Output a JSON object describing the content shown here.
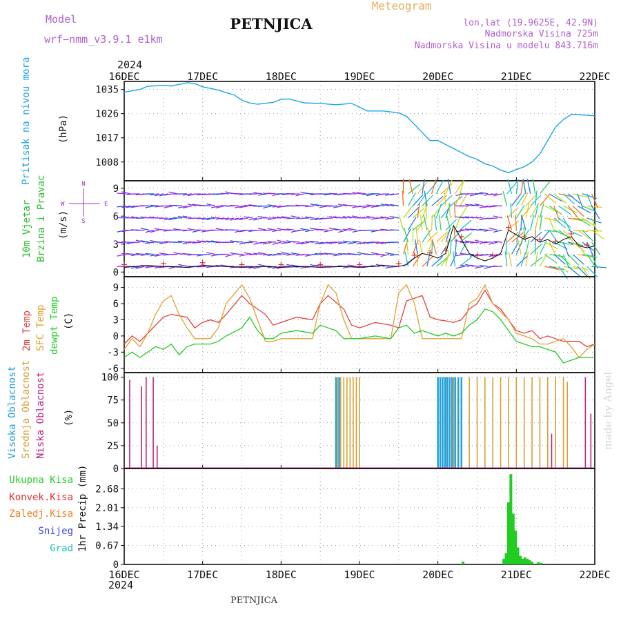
{
  "header": {
    "title": "PETNJICA",
    "subtitle": "Meteogram",
    "model_label": "Model",
    "model_name": "wrf−nmm_v3.9.1  e1km",
    "coords": "lon,lat (19.9625E, 42.9N)",
    "elevation": "Nadmorska Visina 725m",
    "model_elevation": "Nadmorska Visina u modelu 843.716m",
    "year": "2024",
    "footer_title": "PETNJICA",
    "credit": "made by Angel"
  },
  "colors": {
    "pressure": "#1ba5e6",
    "wind_label": "#22bb22",
    "wind_axis_label": "#a030d0",
    "temp_2m": "#e04040",
    "temp_sfc": "#e0a030",
    "dewpt": "#22cc22",
    "cloud_high": "#20a0e0",
    "cloud_mid": "#d8a030",
    "cloud_low": "#c02080",
    "rain_total": "#22cc22",
    "rain_conv": "#e03030",
    "rain_frozen": "#f08020",
    "snow": "#4040e0",
    "hail": "#20c0c0",
    "title_orange": "#e6b060",
    "purple_text": "#b060d0"
  },
  "chart_data": [
    {
      "type": "line",
      "panel": "pressure",
      "ylabel_main": "Pritisak na nivou mora",
      "ylabel_unit": "(hPa)",
      "x_start": "16DEC",
      "x_ticks": [
        "16DEC",
        "17DEC",
        "18DEC",
        "19DEC",
        "20DEC",
        "21DEC",
        "22DEC"
      ],
      "ylim": [
        1001,
        1038
      ],
      "yticks": [
        1008,
        1017,
        1026,
        1035
      ],
      "grid": true,
      "series": [
        {
          "x": [
            0,
            0.2,
            0.3,
            0.5,
            0.6,
            0.8,
            0.9,
            1.0,
            1.2,
            1.3,
            1.4,
            1.5,
            1.6,
            1.7,
            1.9,
            2.0,
            2.1,
            2.3,
            2.5,
            2.7,
            2.9,
            3.1,
            3.3,
            3.5,
            3.6,
            3.8,
            3.9,
            4.0,
            4.1,
            4.3,
            4.4,
            4.5,
            4.6,
            4.7,
            4.8,
            4.9,
            5.0,
            5.1,
            5.2,
            5.3,
            5.4,
            5.5,
            5.6,
            5.7,
            5.8,
            6.0
          ],
          "y": [
            1034,
            1035,
            1036.2,
            1036.5,
            1036.3,
            1037.5,
            1037.2,
            1036,
            1034.8,
            1033.8,
            1033,
            1031,
            1030,
            1029.5,
            1030.2,
            1031.3,
            1031.5,
            1030,
            1029.8,
            1029.3,
            1029.8,
            1027,
            1027,
            1026.3,
            1025,
            1019,
            1016,
            1016,
            1014.5,
            1011.5,
            1010,
            1009,
            1007.3,
            1006.5,
            1005,
            1004,
            1005.2,
            1006.2,
            1008,
            1011,
            1016,
            1021,
            1023.8,
            1025.7,
            1025.6,
            1025.2
          ]
        }
      ]
    },
    {
      "type": "line",
      "panel": "wind",
      "ylabel_main": "10m Vjetar",
      "ylabel_sub": "Brzina i Pravac",
      "ylabel_unit": "(m/s)",
      "compass": {
        "n": "N",
        "w": "W",
        "e": "E",
        "s": "S"
      },
      "ylim": [
        -0.5,
        9.8
      ],
      "yticks": [
        0,
        3,
        6,
        9
      ],
      "grid": true,
      "series": [
        {
          "name": "speed",
          "x": [
            0,
            0.3,
            0.5,
            0.8,
            1.0,
            1.3,
            1.5,
            1.8,
            2.0,
            2.3,
            2.5,
            2.8,
            3.0,
            3.3,
            3.5,
            3.6,
            3.7,
            3.8,
            3.9,
            4.0,
            4.1,
            4.2,
            4.3,
            4.4,
            4.5,
            4.6,
            4.7,
            4.8,
            4.9,
            5.0,
            5.1,
            5.2,
            5.3,
            5.4,
            5.5,
            5.6,
            5.7,
            5.8,
            5.9,
            6.0
          ],
          "y": [
            0.5,
            0.7,
            0.6,
            0.5,
            0.7,
            0.6,
            0.5,
            0.6,
            0.5,
            0.6,
            0.5,
            0.6,
            0.5,
            0.7,
            0.6,
            0.8,
            1.5,
            2.0,
            1.8,
            1.5,
            2.0,
            5.0,
            3.5,
            2.0,
            1.5,
            1.2,
            1.5,
            2.0,
            4.5,
            4.0,
            3.5,
            3.8,
            3.2,
            3.5,
            3.0,
            3.5,
            3.8,
            2.8,
            2.6,
            2.8
          ]
        }
      ]
    },
    {
      "type": "line",
      "panel": "temperature",
      "ylabel_2m": "2m Temp",
      "ylabel_sfc": "SFC Temp",
      "ylabel_dew": "dewpt Temp",
      "ylabel_unit": "(C)",
      "ylim": [
        -6.8,
        11
      ],
      "yticks": [
        -6,
        -3,
        0,
        3,
        6,
        9
      ],
      "grid": true,
      "series": [
        {
          "name": "2m Temp",
          "x": [
            0,
            0.1,
            0.2,
            0.3,
            0.4,
            0.5,
            0.6,
            0.8,
            0.9,
            1.0,
            1.1,
            1.2,
            1.3,
            1.5,
            1.6,
            1.8,
            1.9,
            2.0,
            2.2,
            2.4,
            2.5,
            2.6,
            2.8,
            2.9,
            3.0,
            3.2,
            3.4,
            3.5,
            3.6,
            3.8,
            3.9,
            4.0,
            4.1,
            4.2,
            4.3,
            4.4,
            4.5,
            4.6,
            4.7,
            4.8,
            4.9,
            5.0,
            5.1,
            5.2,
            5.3,
            5.4,
            5.5,
            5.6,
            5.7,
            5.8,
            5.9,
            6.0
          ],
          "y": [
            -1.5,
            0,
            -1,
            0.5,
            2,
            3.5,
            4,
            3.5,
            1.5,
            2.5,
            3,
            2.5,
            4,
            7.5,
            6,
            4,
            2,
            2.5,
            3.5,
            3,
            6,
            7.5,
            5,
            2,
            1.5,
            2.5,
            2,
            1.5,
            6.5,
            7.5,
            3.5,
            3,
            2.8,
            2.5,
            3,
            5,
            6,
            8.5,
            6,
            5,
            3,
            1,
            0.5,
            1,
            -0.5,
            0,
            -0.5,
            -1,
            -1,
            -1,
            -2,
            -1.5
          ]
        },
        {
          "name": "SFC Temp",
          "x": [
            0,
            0.1,
            0.2,
            0.3,
            0.4,
            0.5,
            0.6,
            0.7,
            0.8,
            0.9,
            1.0,
            1.1,
            1.2,
            1.3,
            1.5,
            1.6,
            1.7,
            1.8,
            1.9,
            2.0,
            2.2,
            2.4,
            2.5,
            2.6,
            2.7,
            2.8,
            2.9,
            3.0,
            3.2,
            3.4,
            3.5,
            3.6,
            3.7,
            3.8,
            3.9,
            4.0,
            4.1,
            4.2,
            4.3,
            4.4,
            4.5,
            4.6,
            4.7,
            4.8,
            4.9,
            5.0,
            5.1,
            5.2,
            5.3,
            5.4,
            5.5,
            5.6,
            5.7,
            5.8,
            5.9,
            6.0
          ],
          "y": [
            -2.5,
            -0.5,
            -2,
            0.5,
            4,
            6.5,
            7.5,
            4,
            1.5,
            -0.5,
            -0.5,
            -0.5,
            1.5,
            6,
            9.5,
            7,
            3,
            -1,
            -1,
            -0.5,
            -0.5,
            -0.5,
            6,
            9.5,
            8,
            3,
            -0.5,
            -0.5,
            -0.5,
            -0.5,
            8,
            9.5,
            6,
            -0.5,
            -0.5,
            -0.5,
            -0.5,
            -0.5,
            -0.5,
            6,
            7,
            9.5,
            6,
            4.5,
            3,
            0.5,
            0,
            -0.5,
            -1.5,
            -1.5,
            -1,
            -0.5,
            -2,
            -4,
            -2.5,
            -1.5
          ]
        },
        {
          "name": "dewpt Temp",
          "x": [
            0,
            0.1,
            0.2,
            0.3,
            0.4,
            0.5,
            0.6,
            0.7,
            0.8,
            0.9,
            1.0,
            1.1,
            1.2,
            1.3,
            1.5,
            1.6,
            1.7,
            1.8,
            1.9,
            2.0,
            2.2,
            2.4,
            2.5,
            2.6,
            2.7,
            2.8,
            2.9,
            3.0,
            3.2,
            3.4,
            3.5,
            3.6,
            3.7,
            3.8,
            3.9,
            4.0,
            4.1,
            4.2,
            4.3,
            4.4,
            4.5,
            4.6,
            4.7,
            4.8,
            4.9,
            5.0,
            5.1,
            5.2,
            5.3,
            5.4,
            5.5,
            5.6,
            5.7,
            5.8,
            5.9,
            6.0
          ],
          "y": [
            -4,
            -3,
            -4,
            -3,
            -2,
            -2.5,
            -1.5,
            -3.5,
            -2,
            -1.5,
            -1.5,
            -1.5,
            -1,
            0,
            1.5,
            3.5,
            1,
            -0.5,
            -0.5,
            0.5,
            1,
            0.5,
            2,
            1.5,
            1,
            -0.5,
            -0.5,
            -0.5,
            0,
            -0.5,
            1.5,
            2,
            0.5,
            1,
            0.5,
            0,
            0.5,
            0,
            0.5,
            2,
            3,
            5,
            4.5,
            3,
            1,
            -1,
            -1.5,
            -2,
            -2,
            -2.5,
            -3,
            -5,
            -4.5,
            -4,
            -4,
            -4
          ]
        }
      ]
    },
    {
      "type": "bar",
      "panel": "cloud",
      "ylabel_high": "Visoka Oblacnost",
      "ylabel_mid": "Srednja Oblacnost",
      "ylabel_low": "Niska Oblacnost",
      "ylabel_unit": "(%)",
      "ylim": [
        0,
        105
      ],
      "yticks": [
        0,
        25,
        50,
        75,
        100
      ],
      "grid": true,
      "series": [
        {
          "name": "Niska",
          "x": [
            0.07,
            0.22,
            0.28,
            0.37,
            0.42,
            5.45,
            5.88,
            5.95
          ],
          "values": [
            97,
            90,
            100,
            100,
            25,
            38,
            100,
            60
          ]
        },
        {
          "name": "Srednja",
          "x": [
            2.72,
            2.76,
            2.8,
            2.84,
            2.88,
            2.92,
            2.96,
            3.0,
            4.1,
            4.2,
            4.3,
            4.4,
            4.5,
            4.6,
            4.7,
            4.8,
            4.9,
            5.0,
            5.1,
            5.2,
            5.3,
            5.4,
            5.5,
            5.6,
            5.65
          ],
          "values": [
            100,
            100,
            100,
            100,
            100,
            100,
            100,
            100,
            100,
            100,
            100,
            100,
            100,
            100,
            100,
            100,
            100,
            100,
            100,
            100,
            100,
            100,
            100,
            100,
            95
          ]
        },
        {
          "name": "Visoka",
          "x": [
            2.7,
            2.74,
            4.0,
            4.03,
            4.06,
            4.09,
            4.12,
            4.15,
            4.18,
            4.22,
            4.26,
            4.3
          ],
          "values": [
            100,
            100,
            100,
            100,
            100,
            100,
            100,
            100,
            100,
            100,
            100,
            100
          ]
        }
      ]
    },
    {
      "type": "bar",
      "panel": "precip",
      "ylabel_main": "1hr Precip",
      "ylabel_unit": "(mm)",
      "legend": [
        "Ukupna  Kisa",
        "Konvek.Kisa",
        "Zaledj.Kisa",
        "Snijeg",
        "Grad"
      ],
      "ylim": [
        0,
        3.4
      ],
      "yticks": [
        0,
        0.67,
        1.34,
        2.01,
        2.68
      ],
      "grid": true,
      "series": [
        {
          "name": "Ukupna  Kisa",
          "x": [
            4.32,
            4.84,
            4.87,
            4.9,
            4.93,
            4.96,
            4.99,
            5.02,
            5.05,
            5.08,
            5.11,
            5.14,
            5.17,
            5.2,
            5.28,
            5.32
          ],
          "values": [
            0.1,
            0.2,
            0.4,
            2.2,
            3.2,
            1.8,
            1.2,
            0.6,
            0.3,
            0.2,
            0.25,
            0.2,
            0.15,
            0.1,
            0.08,
            0.05
          ]
        }
      ]
    }
  ]
}
